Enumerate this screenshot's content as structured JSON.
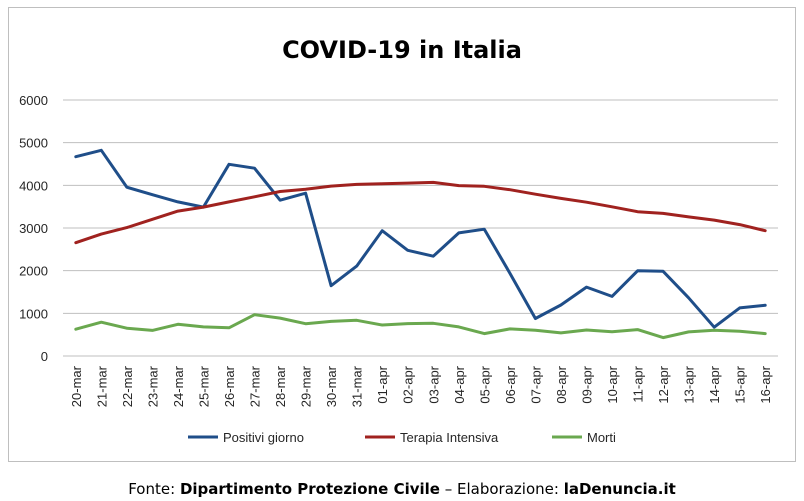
{
  "chart_data": {
    "type": "line",
    "title": "COVID-19 in Italia",
    "categories": [
      "20-mar",
      "21-mar",
      "22-mar",
      "23-mar",
      "24-mar",
      "25-mar",
      "26-mar",
      "27-mar",
      "28-mar",
      "29-mar",
      "30-mar",
      "31-mar",
      "01-apr",
      "02-apr",
      "03-apr",
      "04-apr",
      "05-apr",
      "06-apr",
      "07-apr",
      "08-apr",
      "09-apr",
      "10-apr",
      "11-apr",
      "12-apr",
      "13-apr",
      "14-apr",
      "15-apr",
      "16-apr"
    ],
    "y_ticks": [
      "0",
      "1000",
      "2000",
      "3000",
      "4000",
      "5000",
      "6000"
    ],
    "ylim": [
      0,
      6000
    ],
    "grid": true,
    "legend_position": "bottom",
    "series": [
      {
        "name": "Positivi giorno",
        "color": "#1f4e89",
        "values": [
          4670,
          4821,
          3957,
          3780,
          3612,
          3491,
          4492,
          4401,
          3651,
          3815,
          1648,
          2107,
          2937,
          2477,
          2339,
          2886,
          2972,
          1941,
          880,
          1195,
          1615,
          1396,
          1996,
          1984,
          1363,
          675,
          1127,
          1189
        ]
      },
      {
        "name": "Terapia Intensiva",
        "color": "#a0221f",
        "values": [
          2655,
          2857,
          3009,
          3204,
          3396,
          3489,
          3612,
          3732,
          3856,
          3906,
          3981,
          4023,
          4035,
          4053,
          4068,
          3994,
          3977,
          3898,
          3792,
          3693,
          3605,
          3497,
          3381,
          3343,
          3260,
          3186,
          3079,
          2936
        ]
      },
      {
        "name": "Morti",
        "color": "#6aa84f",
        "values": [
          627,
          793,
          651,
          601,
          743,
          683,
          662,
          969,
          889,
          756,
          812,
          837,
          727,
          760,
          766,
          681,
          525,
          636,
          604,
          542,
          610,
          570,
          619,
          431,
          566,
          602,
          578,
          525
        ]
      }
    ]
  },
  "footer": {
    "prefix": "Fonte: ",
    "source": "Dipartimento Protezione Civile",
    "separator": " – Elaborazione: ",
    "author": "laDenuncia.it"
  }
}
